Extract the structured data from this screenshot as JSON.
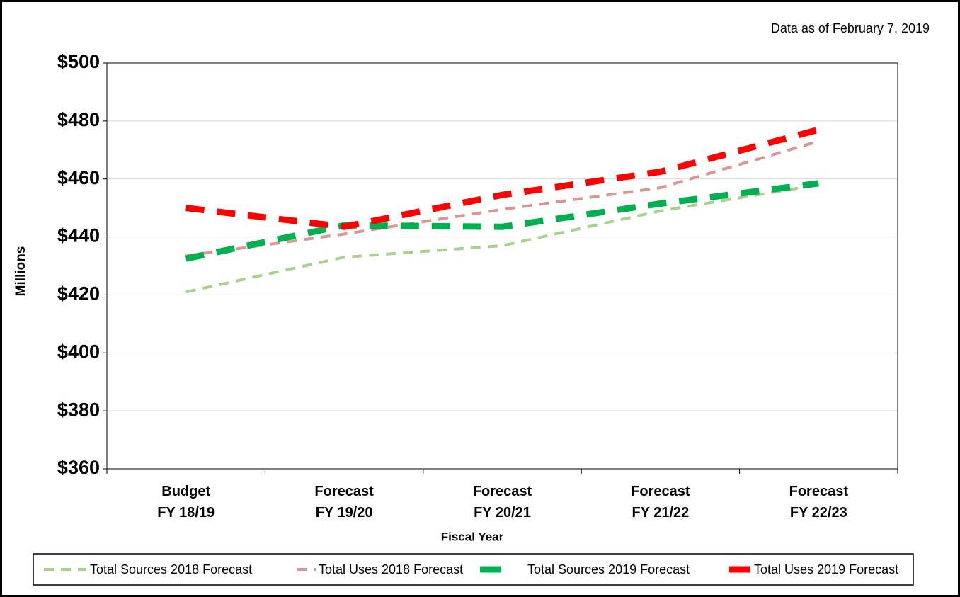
{
  "chart_data": {
    "type": "line",
    "note": "Data as of February 7, 2019",
    "ylabel": "Millions",
    "xlabel": "Fiscal Year",
    "categories": [
      "Budget\nFY 18/19",
      "Forecast\nFY 19/20",
      "Forecast\nFY 20/21",
      "Forecast\nFY 21/22",
      "Forecast\nFY 22/23"
    ],
    "series": [
      {
        "name": "Total Sources 2018 Forecast",
        "color": "#a9d18e",
        "values": [
          421,
          433,
          437,
          449,
          458
        ]
      },
      {
        "name": "Total Uses 2018 Forecast",
        "color": "#d99694",
        "values": [
          433.5,
          441,
          449.5,
          457,
          473
        ]
      },
      {
        "name": "Total Sources 2019 Forecast",
        "color": "#00b050",
        "values": [
          432.5,
          444,
          443.5,
          451.5,
          458.5
        ]
      },
      {
        "name": "Total Uses 2019 Forecast",
        "color": "#ff0000",
        "values": [
          450,
          443.5,
          454.5,
          462.5,
          477
        ]
      }
    ],
    "ylim": [
      360,
      500
    ],
    "yticks": [
      {
        "value": 360,
        "label": "$360"
      },
      {
        "value": 380,
        "label": "$380"
      },
      {
        "value": 400,
        "label": "$400"
      },
      {
        "value": 420,
        "label": "$420"
      },
      {
        "value": 440,
        "label": "$440"
      },
      {
        "value": 460,
        "label": "$460"
      },
      {
        "value": 480,
        "label": "$480"
      },
      {
        "value": 500,
        "label": "$500"
      }
    ],
    "grid": true
  }
}
